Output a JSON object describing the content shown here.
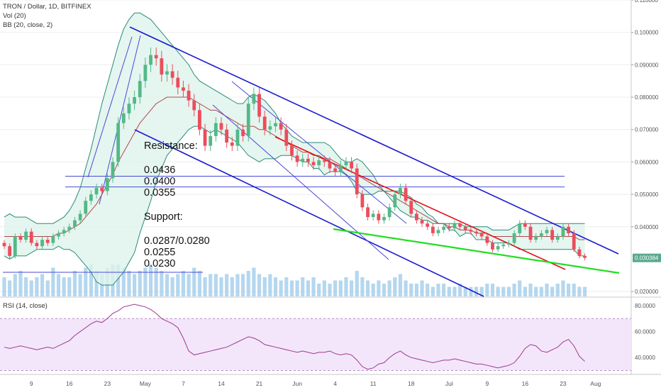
{
  "header": {
    "symbol": "TRON / Dollar, 1D, BITFINEX",
    "vol_label": "Vol (20)",
    "bb_label": "BB (20, close, 2)",
    "rsi_label": "RSI (14, close)"
  },
  "annotations": {
    "resistance_title": "Resistance:",
    "resistance_1": "0.0436",
    "resistance_2": "0.0400",
    "resistance_3": "0.0355",
    "support_title": "Support:",
    "support_1": "0.0287/0.0280",
    "support_2": "0.0255",
    "support_3": "0.0230"
  },
  "colors": {
    "up": "#53b987",
    "down": "#eb4d5c",
    "bb_fill": "#dff3ec",
    "bb_band": "#2b8a7a",
    "bb_basis": "#b04a4a",
    "channel": "#1a1ad1",
    "thin_line": "#4a4ad6",
    "red_line": "#e01010",
    "green_line": "#22dd22",
    "volume": "#9cc9ea",
    "rsi_line": "#9c3a8f",
    "rsi_band": "#f3e6fa",
    "last_price_bg": "#5aa88f"
  },
  "chart_data": [
    {
      "type": "candlestick",
      "title": "TRON / Dollar, 1D, BITFINEX",
      "y_ticks": [
        "0.110000",
        "0.100000",
        "0.090000",
        "0.080000",
        "0.070000",
        "0.060000",
        "0.050000",
        "0.040000",
        "0.030384",
        "0.020000"
      ],
      "ylim": [
        0.0185,
        0.11
      ],
      "last_price": 0.030384,
      "x_ticks": [
        "9",
        "16",
        "23",
        "May",
        "7",
        "14",
        "21",
        "Jun",
        "4",
        "11",
        "18",
        "Jul",
        "9",
        "16",
        "23",
        "Aug"
      ],
      "candles_close": [
        0.034,
        0.031,
        0.037,
        0.036,
        0.0385,
        0.035,
        0.034,
        0.036,
        0.035,
        0.037,
        0.038,
        0.039,
        0.04,
        0.042,
        0.044,
        0.048,
        0.05,
        0.052,
        0.051,
        0.055,
        0.06,
        0.072,
        0.075,
        0.078,
        0.08,
        0.085,
        0.09,
        0.093,
        0.092,
        0.087,
        0.088,
        0.086,
        0.083,
        0.082,
        0.079,
        0.076,
        0.07,
        0.065,
        0.068,
        0.072,
        0.07,
        0.066,
        0.065,
        0.07,
        0.068,
        0.078,
        0.081,
        0.074,
        0.07,
        0.071,
        0.072,
        0.07,
        0.065,
        0.062,
        0.06,
        0.061,
        0.06,
        0.059,
        0.0605,
        0.06,
        0.058,
        0.057,
        0.059,
        0.06,
        0.058,
        0.05,
        0.046,
        0.043,
        0.044,
        0.042,
        0.043,
        0.046,
        0.05,
        0.052,
        0.048,
        0.044,
        0.042,
        0.041,
        0.04,
        0.038,
        0.039,
        0.04,
        0.0395,
        0.041,
        0.04,
        0.039,
        0.0385,
        0.038,
        0.037,
        0.035,
        0.033,
        0.034,
        0.0345,
        0.035,
        0.038,
        0.041,
        0.04,
        0.036,
        0.037,
        0.038,
        0.039,
        0.036,
        0.037,
        0.04,
        0.038,
        0.033,
        0.031,
        0.0304
      ],
      "bb_upper": [
        0.043,
        0.044,
        0.043,
        0.043,
        0.043,
        0.042,
        0.041,
        0.041,
        0.041,
        0.041,
        0.042,
        0.043,
        0.045,
        0.048,
        0.052,
        0.058,
        0.064,
        0.071,
        0.078,
        0.084,
        0.09,
        0.096,
        0.101,
        0.104,
        0.106,
        0.106,
        0.105,
        0.104,
        0.102,
        0.1,
        0.098,
        0.096,
        0.094,
        0.092,
        0.09,
        0.087,
        0.085,
        0.084,
        0.083,
        0.082,
        0.081,
        0.08,
        0.079,
        0.078,
        0.078,
        0.08,
        0.081,
        0.08,
        0.079,
        0.077,
        0.075,
        0.072,
        0.07,
        0.068,
        0.067,
        0.066,
        0.066,
        0.066,
        0.066,
        0.066,
        0.065,
        0.063,
        0.061,
        0.06,
        0.06,
        0.061,
        0.06,
        0.058,
        0.056,
        0.053,
        0.051,
        0.049,
        0.047,
        0.045,
        0.044,
        0.043,
        0.043,
        0.042,
        0.042,
        0.041,
        0.041,
        0.041,
        0.041,
        0.041,
        0.041,
        0.04,
        0.04,
        0.04,
        0.04,
        0.04,
        0.039,
        0.039,
        0.039,
        0.039,
        0.04,
        0.041,
        0.041,
        0.041,
        0.041,
        0.041,
        0.041,
        0.041,
        0.041,
        0.041,
        0.041,
        0.041,
        0.041,
        0.041
      ],
      "bb_basis": [
        0.037,
        0.037,
        0.037,
        0.037,
        0.037,
        0.037,
        0.037,
        0.037,
        0.037,
        0.037,
        0.038,
        0.038,
        0.039,
        0.04,
        0.041,
        0.043,
        0.045,
        0.047,
        0.05,
        0.053,
        0.056,
        0.06,
        0.063,
        0.066,
        0.069,
        0.072,
        0.074,
        0.076,
        0.078,
        0.079,
        0.08,
        0.08,
        0.08,
        0.08,
        0.08,
        0.079,
        0.078,
        0.077,
        0.076,
        0.076,
        0.075,
        0.074,
        0.073,
        0.072,
        0.071,
        0.071,
        0.071,
        0.07,
        0.07,
        0.069,
        0.068,
        0.067,
        0.066,
        0.065,
        0.064,
        0.063,
        0.063,
        0.062,
        0.062,
        0.061,
        0.061,
        0.06,
        0.059,
        0.058,
        0.057,
        0.056,
        0.055,
        0.054,
        0.053,
        0.052,
        0.051,
        0.05,
        0.049,
        0.048,
        0.047,
        0.046,
        0.045,
        0.044,
        0.043,
        0.042,
        0.041,
        0.041,
        0.04,
        0.04,
        0.039,
        0.039,
        0.039,
        0.038,
        0.038,
        0.038,
        0.037,
        0.037,
        0.037,
        0.037,
        0.037,
        0.037,
        0.037,
        0.037,
        0.037,
        0.037,
        0.037,
        0.037,
        0.037,
        0.037,
        0.037,
        0.037,
        0.036,
        0.036
      ],
      "bb_lower": [
        0.031,
        0.03,
        0.031,
        0.031,
        0.031,
        0.032,
        0.033,
        0.033,
        0.033,
        0.033,
        0.034,
        0.033,
        0.033,
        0.032,
        0.03,
        0.028,
        0.026,
        0.023,
        0.022,
        0.022,
        0.022,
        0.024,
        0.026,
        0.029,
        0.032,
        0.038,
        0.043,
        0.048,
        0.054,
        0.058,
        0.062,
        0.064,
        0.066,
        0.068,
        0.07,
        0.071,
        0.071,
        0.07,
        0.069,
        0.07,
        0.069,
        0.068,
        0.067,
        0.066,
        0.064,
        0.062,
        0.061,
        0.06,
        0.061,
        0.061,
        0.061,
        0.062,
        0.062,
        0.062,
        0.061,
        0.06,
        0.06,
        0.058,
        0.058,
        0.056,
        0.057,
        0.057,
        0.057,
        0.056,
        0.054,
        0.051,
        0.05,
        0.05,
        0.05,
        0.051,
        0.051,
        0.051,
        0.051,
        0.051,
        0.05,
        0.049,
        0.047,
        0.046,
        0.044,
        0.043,
        0.041,
        0.041,
        0.039,
        0.039,
        0.037,
        0.038,
        0.038,
        0.036,
        0.036,
        0.036,
        0.035,
        0.035,
        0.035,
        0.035,
        0.034,
        0.033,
        0.033,
        0.033,
        0.033,
        0.033,
        0.033,
        0.033,
        0.033,
        0.033,
        0.033,
        0.033,
        0.031,
        0.031
      ],
      "volume": [
        0.6,
        0.5,
        0.7,
        0.8,
        0.6,
        0.5,
        0.6,
        0.7,
        0.5,
        0.9,
        0.7,
        0.6,
        0.6,
        0.8,
        0.7,
        0.9,
        1.0,
        0.8,
        0.7,
        0.9,
        1.0,
        1.0,
        0.9,
        0.8,
        0.7,
        0.8,
        0.9,
        1.0,
        0.9,
        0.8,
        0.7,
        0.6,
        0.7,
        0.8,
        0.7,
        0.9,
        0.8,
        0.6,
        0.7,
        0.7,
        0.6,
        0.7,
        0.6,
        0.7,
        0.7,
        0.8,
        0.9,
        0.7,
        0.6,
        0.7,
        0.6,
        0.5,
        0.6,
        0.5,
        0.5,
        0.6,
        0.5,
        0.6,
        0.4,
        0.5,
        0.4,
        0.5,
        0.5,
        0.6,
        0.5,
        0.8,
        0.6,
        0.5,
        0.4,
        0.5,
        0.4,
        0.5,
        0.6,
        0.7,
        0.5,
        0.4,
        0.4,
        0.5,
        0.4,
        0.3,
        0.4,
        0.4,
        0.3,
        0.3,
        0.4,
        0.3,
        0.3,
        0.3,
        0.3,
        0.4,
        0.4,
        0.3,
        0.3,
        0.3,
        0.4,
        0.5,
        0.3,
        0.4,
        0.3,
        0.3,
        0.4,
        0.3,
        0.4,
        0.5,
        0.4,
        0.4,
        0.3,
        0.3
      ],
      "horizontal_levels": [
        0.0556,
        0.0523
      ],
      "resistance_annotations": [
        0.0436,
        0.04,
        0.0355
      ],
      "support_annotations": [
        0.0287,
        0.028,
        0.0255,
        0.023
      ]
    },
    {
      "type": "line",
      "title": "RSI (14, close)",
      "y_ticks": [
        "80.0000",
        "60.0000",
        "40.0000"
      ],
      "ylim": [
        27,
        86
      ],
      "band": [
        30,
        70
      ],
      "values": [
        48,
        47,
        48,
        49,
        48,
        47,
        46,
        47,
        48,
        47,
        49,
        51,
        53,
        57,
        60,
        63,
        66,
        68,
        67,
        70,
        74,
        76,
        79,
        80,
        81,
        80,
        79,
        77,
        74,
        70,
        68,
        66,
        63,
        55,
        45,
        42,
        43,
        44,
        45,
        46,
        47,
        48,
        50,
        52,
        54,
        56,
        55,
        53,
        50,
        49,
        48,
        47,
        46,
        45,
        44,
        45,
        44,
        43,
        44,
        44,
        45,
        43,
        42,
        43,
        42,
        38,
        33,
        31,
        32,
        35,
        36,
        40,
        43,
        45,
        42,
        40,
        39,
        38,
        37,
        36,
        37,
        38,
        38,
        39,
        38,
        37,
        36,
        35,
        35,
        34,
        33,
        32,
        33,
        34,
        36,
        41,
        47,
        50,
        49,
        45,
        44,
        46,
        48,
        52,
        54,
        49,
        41,
        37
      ]
    }
  ]
}
